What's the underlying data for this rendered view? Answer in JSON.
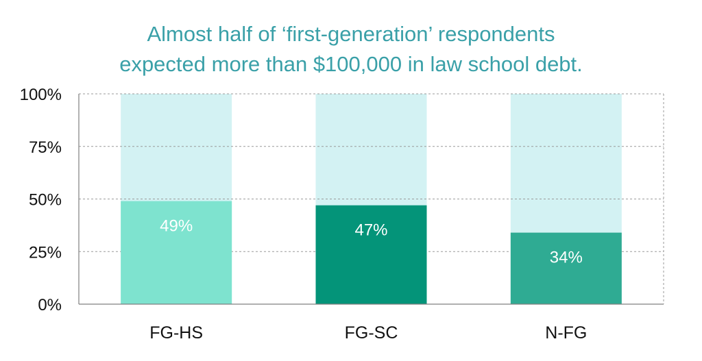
{
  "chart_data": {
    "type": "bar",
    "title_lines": [
      "Almost half of ‘first-generation’ respondents",
      "expected more than $100,000 in law school debt."
    ],
    "categories": [
      "FG-HS",
      "FG-SC",
      "N-FG"
    ],
    "values": [
      49,
      47,
      34
    ],
    "value_labels": [
      "49%",
      "47%",
      "34%"
    ],
    "ylim": [
      0,
      100
    ],
    "yticks": [
      0,
      25,
      50,
      75,
      100
    ],
    "ytick_labels": [
      "0%",
      "25%",
      "50%",
      "75%",
      "100%"
    ],
    "grid": true,
    "colors": {
      "bars": [
        "#7ee3cf",
        "#049479",
        "#2fab93"
      ],
      "background_bar": "#d3f2f3",
      "title": "#3aa0a8"
    }
  }
}
